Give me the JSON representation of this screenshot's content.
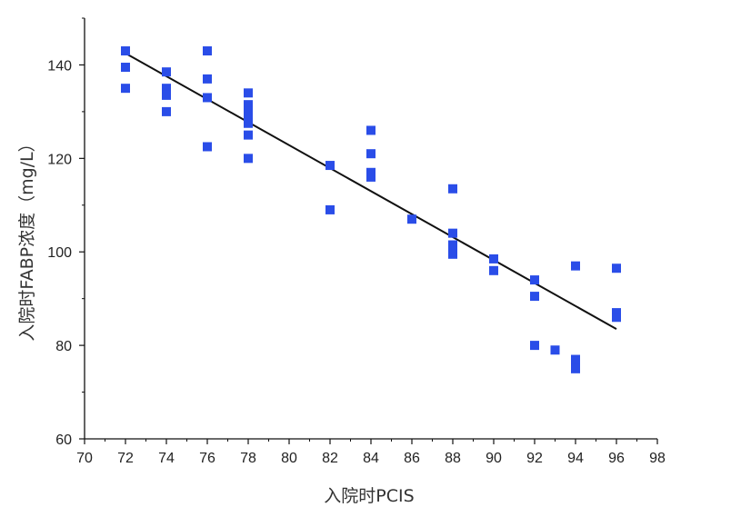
{
  "chart_data": {
    "type": "scatter",
    "xlabel": "入院时PCIS",
    "ylabel": "入院时FABP浓度（mg/L）",
    "xlim": [
      70,
      98
    ],
    "ylim": [
      60,
      150
    ],
    "x_ticks": [
      70,
      72,
      74,
      76,
      78,
      80,
      82,
      84,
      86,
      88,
      90,
      92,
      94,
      96,
      98
    ],
    "y_ticks": [
      60,
      80,
      100,
      120,
      140
    ],
    "grid": false,
    "legend": "none",
    "marker_color": "#2a4de8",
    "line_color": "#111111",
    "series": [
      {
        "points": [
          [
            72,
            143
          ],
          [
            72,
            139.5
          ],
          [
            72,
            135
          ],
          [
            74,
            138.5
          ],
          [
            74,
            135
          ],
          [
            74,
            133.5
          ],
          [
            74,
            130
          ],
          [
            76,
            143
          ],
          [
            76,
            137
          ],
          [
            76,
            133
          ],
          [
            76,
            122.5
          ],
          [
            78,
            134
          ],
          [
            78,
            131.5
          ],
          [
            78,
            130
          ],
          [
            78,
            128.5
          ],
          [
            78,
            127.5
          ],
          [
            78,
            125
          ],
          [
            78,
            120
          ],
          [
            82,
            118.5
          ],
          [
            82,
            109
          ],
          [
            84,
            126
          ],
          [
            84,
            121
          ],
          [
            84,
            117
          ],
          [
            84,
            116
          ],
          [
            86,
            107
          ],
          [
            88,
            113.5
          ],
          [
            88,
            104
          ],
          [
            88,
            101.5
          ],
          [
            88,
            100.5
          ],
          [
            88,
            99.5
          ],
          [
            90,
            98.5
          ],
          [
            90,
            96
          ],
          [
            92,
            94
          ],
          [
            92,
            90.5
          ],
          [
            92,
            80
          ],
          [
            93,
            79
          ],
          [
            94,
            97
          ],
          [
            94,
            77
          ],
          [
            94,
            76
          ],
          [
            94,
            75
          ],
          [
            96,
            96.5
          ],
          [
            96,
            87
          ],
          [
            96,
            86
          ]
        ]
      }
    ],
    "trendline": {
      "x": [
        72,
        96
      ],
      "y": [
        142.5,
        83.5
      ]
    }
  }
}
